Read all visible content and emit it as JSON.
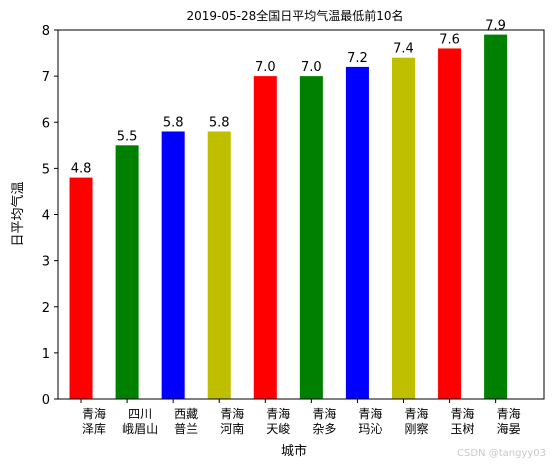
{
  "chart_data": {
    "type": "bar",
    "title": "2019-05-28全国日平均气温最低前10名",
    "xlabel": "城市",
    "ylabel": "日平均气温",
    "ylim": [
      0,
      8
    ],
    "yticks": [
      "0",
      "1",
      "2",
      "3",
      "4",
      "5",
      "6",
      "7",
      "8"
    ],
    "categories": [
      [
        "青海",
        "泽库"
      ],
      [
        "四川",
        "峨眉山"
      ],
      [
        "西藏",
        "普兰"
      ],
      [
        "青海",
        "河南"
      ],
      [
        "青海",
        "天峻"
      ],
      [
        "青海",
        "杂多"
      ],
      [
        "青海",
        "玛沁"
      ],
      [
        "青海",
        "刚察"
      ],
      [
        "青海",
        "玉树"
      ],
      [
        "青海",
        "海晏"
      ]
    ],
    "values": [
      4.8,
      5.5,
      5.8,
      5.8,
      7.0,
      7.0,
      7.2,
      7.4,
      7.6,
      7.9
    ],
    "value_labels": [
      "4.8",
      "5.5",
      "5.8",
      "5.8",
      "7.0",
      "7.0",
      "7.2",
      "7.4",
      "7.6",
      "7.9"
    ],
    "bar_colors": [
      "#ff0000",
      "#008000",
      "#0000ff",
      "#bfbf00",
      "#ff0000",
      "#008000",
      "#0000ff",
      "#bfbf00",
      "#ff0000",
      "#008000"
    ],
    "grid": false,
    "legend": "none"
  },
  "watermark": "CSDN @tangyy03"
}
